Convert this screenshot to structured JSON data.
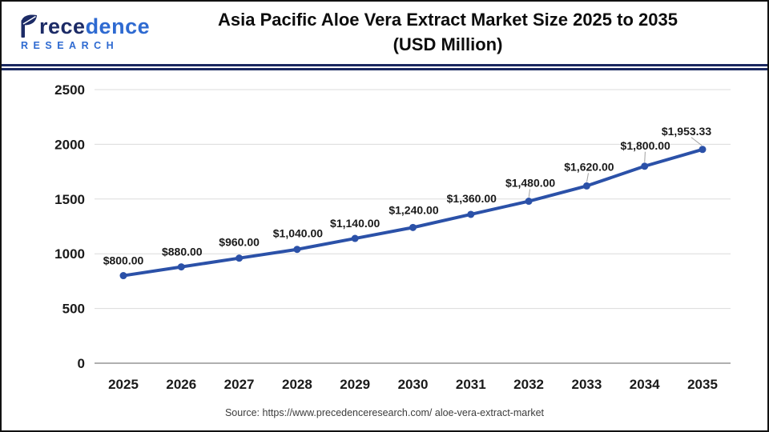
{
  "header": {
    "logo": {
      "brand_p": "P",
      "brand_navy": "rece",
      "brand_blue": "dence",
      "subtitle": "RESEARCH",
      "navy_color": "#1c2b66",
      "blue_color": "#2e6ad1"
    },
    "title_line1": "Asia Pacific Aloe Vera Extract Market Size 2025 to 2035",
    "title_line2": "(USD Million)",
    "rule_color": "#1a2860"
  },
  "chart_data": {
    "type": "line",
    "title": "Asia Pacific Aloe Vera Extract Market Size 2025 to 2035 (USD Million)",
    "categories": [
      "2025",
      "2026",
      "2027",
      "2028",
      "2029",
      "2030",
      "2031",
      "2032",
      "2033",
      "2034",
      "2035"
    ],
    "series": [
      {
        "name": "Asia Pacific Aloe Vera Extract Market Size (USD Million)",
        "values": [
          800,
          880,
          960,
          1040,
          1140,
          1240,
          1360,
          1480,
          1620,
          1800,
          1953.33
        ]
      }
    ],
    "point_labels": [
      "$800.00",
      "$880.00",
      "$960.00",
      "$1,040.00",
      "$1,140.00",
      "$1,240.00",
      "$1,360.00",
      "$1,480.00",
      "$1,620.00",
      "$1,800.00",
      "$1,953.33"
    ],
    "xlabel": "",
    "ylabel": "",
    "ylim": [
      0,
      2500
    ],
    "y_ticks": [
      0,
      500,
      1000,
      1500,
      2000,
      2500
    ],
    "grid": true,
    "legend": false,
    "line_color": "#2b51a8",
    "marker": "circle",
    "grid_color": "#dcdcdc",
    "axis_color": "#b0b0b0",
    "label_color": "#1a1a1a"
  },
  "footer": {
    "source": "Source: https://www.precedenceresearch.com/ aloe-vera-extract-market"
  }
}
